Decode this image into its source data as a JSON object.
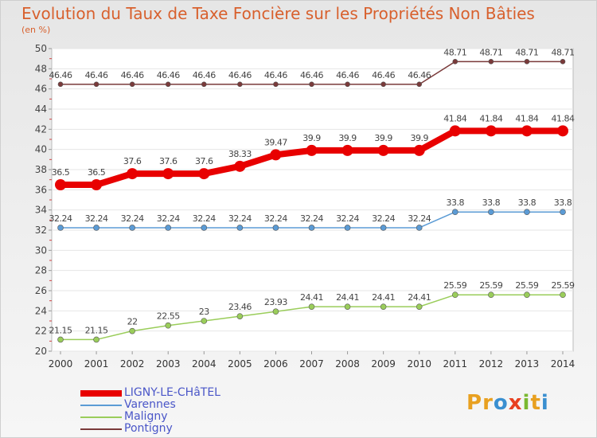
{
  "title": "Evolution du Taux de Taxe Foncière sur les Propriétés Non Bâties",
  "subtitle": "(en %)",
  "logo": {
    "text": "Proxiti",
    "letters": [
      "P",
      "r",
      "o",
      "x",
      "i",
      "t",
      "i"
    ],
    "colors": [
      "#e8a020",
      "#e8a020",
      "#3a8fd0",
      "#e84020",
      "#7ab830",
      "#e8a020",
      "#3a8fd0"
    ]
  },
  "legend": [
    {
      "label": "LIGNY-LE-CHâTEL",
      "color": "#e80000"
    },
    {
      "label": "Varennes",
      "color": "#5b9bd5"
    },
    {
      "label": "Maligny",
      "color": "#9acd5a"
    },
    {
      "label": "Pontigny",
      "color": "#7a3a3a"
    }
  ],
  "chart_data": {
    "type": "line",
    "title": "Evolution du Taux de Taxe Foncière sur les Propriétés Non Bâties",
    "ylabel": "(en %)",
    "ylim": [
      20,
      50
    ],
    "yticks": [
      20,
      22,
      24,
      26,
      28,
      30,
      32,
      34,
      36,
      38,
      40,
      42,
      44,
      46,
      48,
      50
    ],
    "categories": [
      "2000",
      "2001",
      "2002",
      "2003",
      "2004",
      "2005",
      "2006",
      "2007",
      "2008",
      "2009",
      "2010",
      "2011",
      "2012",
      "2013",
      "2014"
    ],
    "series": [
      {
        "name": "Pontigny",
        "color": "#7a3a3a",
        "width": 1.5,
        "marker": 3,
        "values": [
          46.46,
          46.46,
          46.46,
          46.46,
          46.46,
          46.46,
          46.46,
          46.46,
          46.46,
          46.46,
          46.46,
          48.71,
          48.71,
          48.71,
          48.71
        ],
        "labels": [
          "46.46",
          "46.46",
          "46.46",
          "46.46",
          "46.46",
          "46.46",
          "46.46",
          "46.46",
          "46.46",
          "46.46",
          "46.46",
          "48.71",
          "48.71",
          "48.71",
          "48.71"
        ]
      },
      {
        "name": "LIGNY-LE-CHâTEL",
        "color": "#e80000",
        "width": 8,
        "marker": 7,
        "values": [
          36.5,
          36.5,
          37.6,
          37.6,
          37.6,
          38.33,
          39.47,
          39.9,
          39.9,
          39.9,
          39.9,
          41.84,
          41.84,
          41.84,
          41.84
        ],
        "labels": [
          "36.5",
          "36.5",
          "37.6",
          "37.6",
          "37.6",
          "38.33",
          "39.47",
          "39.9",
          "39.9",
          "39.9",
          "39.9",
          "41.84",
          "41.84",
          "41.84",
          "41.84"
        ]
      },
      {
        "name": "Varennes",
        "color": "#5b9bd5",
        "width": 1.5,
        "marker": 3.5,
        "values": [
          32.24,
          32.24,
          32.24,
          32.24,
          32.24,
          32.24,
          32.24,
          32.24,
          32.24,
          32.24,
          32.24,
          33.8,
          33.8,
          33.8,
          33.8
        ],
        "labels": [
          "32.24",
          "32.24",
          "32.24",
          "32.24",
          "32.24",
          "32.24",
          "32.24",
          "32.24",
          "32.24",
          "32.24",
          "32.24",
          "33.8",
          "33.8",
          "33.8",
          "33.8"
        ]
      },
      {
        "name": "Maligny",
        "color": "#9acd5a",
        "width": 1.5,
        "marker": 3.5,
        "values": [
          21.15,
          21.15,
          22,
          22.55,
          23,
          23.46,
          23.93,
          24.41,
          24.41,
          24.41,
          24.41,
          25.59,
          25.59,
          25.59,
          25.59
        ],
        "labels": [
          "21.15",
          "21.15",
          "22",
          "22.55",
          "23",
          "23.46",
          "23.93",
          "24.41",
          "24.41",
          "24.41",
          "24.41",
          "25.59",
          "25.59",
          "25.59",
          "25.59"
        ]
      }
    ]
  }
}
